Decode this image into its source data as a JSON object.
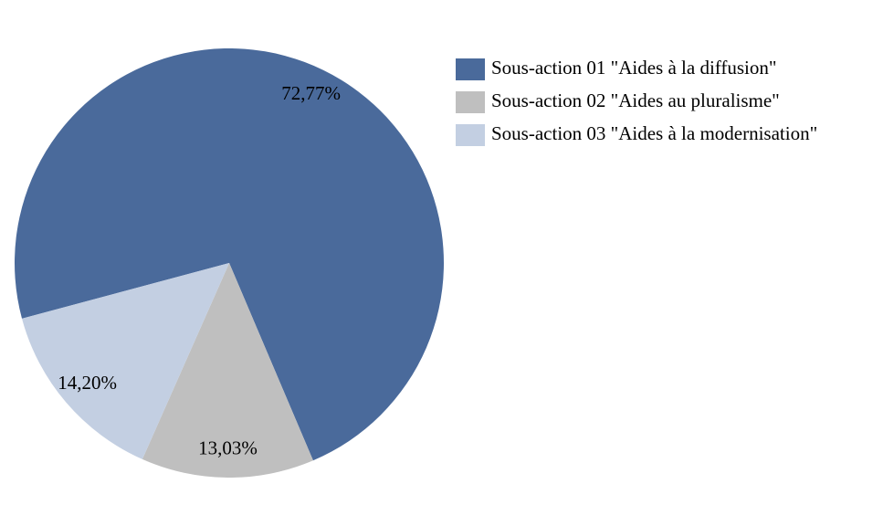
{
  "chart_data": {
    "type": "pie",
    "categories": [
      "Sous-action 01 \"Aides à la diffusion\"",
      "Sous-action 02 \"Aides au pluralisme\"",
      "Sous-action 03 \"Aides à la modernisation\""
    ],
    "values": [
      72.77,
      13.03,
      14.2
    ],
    "value_labels": [
      "72,77%",
      "13,03%",
      "14,20%"
    ],
    "colors": [
      "#4a6a9b",
      "#bfbfbf",
      "#c3cfe2"
    ],
    "legend": "top-right"
  }
}
